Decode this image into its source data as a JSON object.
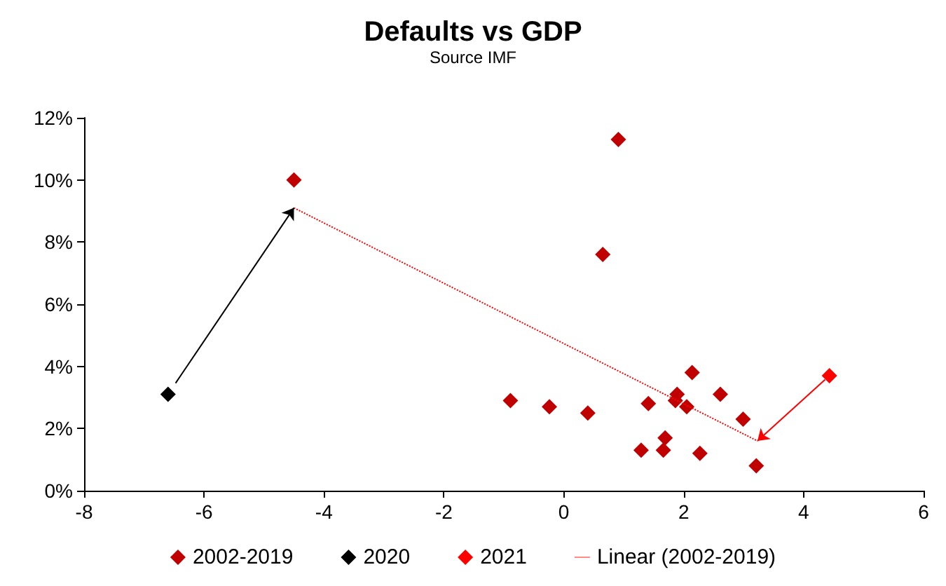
{
  "chart_data": {
    "type": "scatter",
    "title": "Defaults vs GDP",
    "subtitle": "Source IMF",
    "marker": "diamond",
    "grid": false,
    "legend": "bottom",
    "xlim": [
      -8,
      6
    ],
    "xticks": [
      -8,
      -6,
      -4,
      -2,
      0,
      2,
      4,
      6
    ],
    "ylim": [
      0,
      12
    ],
    "yticks": [
      {
        "value": 0,
        "label": "0%"
      },
      {
        "value": 2,
        "label": "2%"
      },
      {
        "value": 4,
        "label": "4%"
      },
      {
        "value": 6,
        "label": "6%"
      },
      {
        "value": 8,
        "label": "8%"
      },
      {
        "value": 10,
        "label": "10%"
      },
      {
        "value": 12,
        "label": "12%"
      }
    ],
    "series": [
      {
        "name": "2002-2019",
        "color": "#c00000",
        "x": [
          -4.5,
          0.91,
          0.65,
          -0.89,
          -0.24,
          0.4,
          1.41,
          1.29,
          1.69,
          1.66,
          1.89,
          1.86,
          2.05,
          2.14,
          2.27,
          2.61,
          2.99,
          3.21
        ],
        "values": [
          10.0,
          11.3,
          7.6,
          2.9,
          2.7,
          2.5,
          2.8,
          1.3,
          1.7,
          1.3,
          3.1,
          2.9,
          2.7,
          3.8,
          1.2,
          3.1,
          2.3,
          0.8
        ]
      },
      {
        "name": "2020",
        "color": "#000000",
        "x": [
          -6.6
        ],
        "values": [
          3.1
        ]
      },
      {
        "name": "2021",
        "color": "#ff0000",
        "x": [
          4.43
        ],
        "values": [
          3.7
        ]
      },
      {
        "name": "Linear (2002-2019)",
        "type": "line",
        "color": "#ff0000",
        "marker": "none",
        "line_style": "dotted",
        "x": [
          -4.5,
          3.23
        ],
        "values": [
          9.1,
          1.6
        ]
      }
    ]
  }
}
